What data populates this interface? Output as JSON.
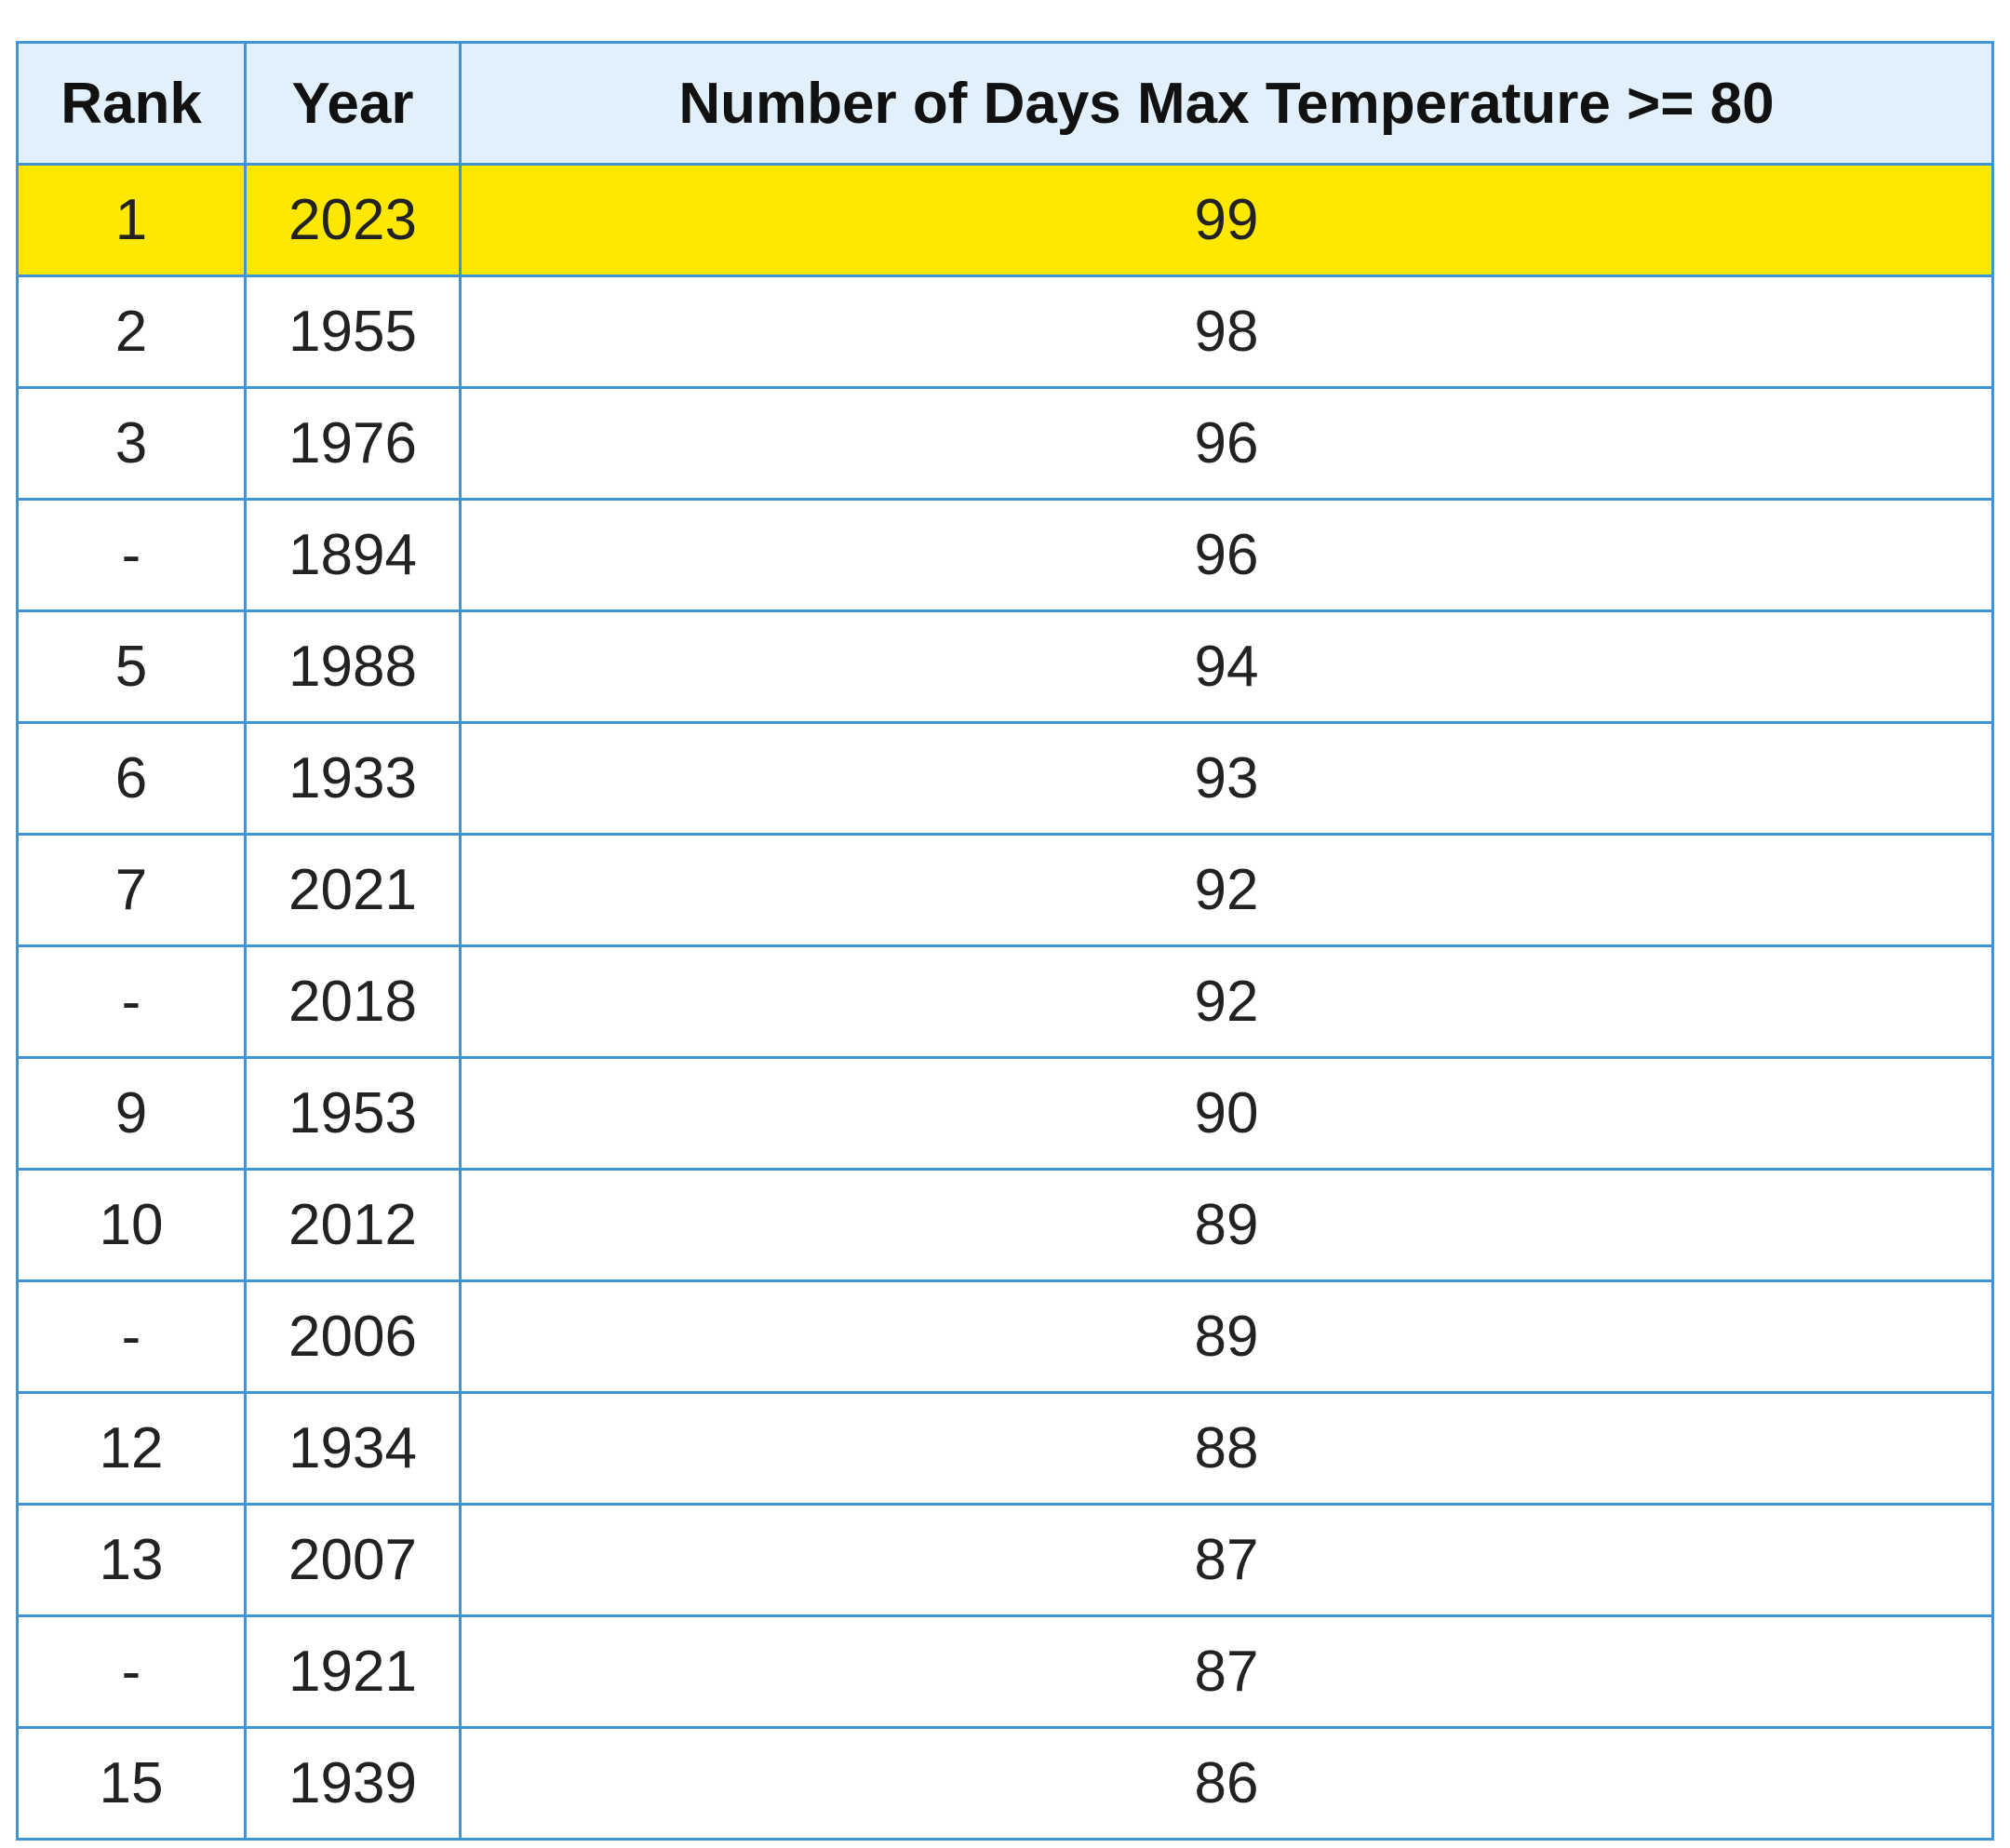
{
  "table": {
    "columns": [
      "Rank",
      "Year",
      "Number of Days Max Temperature >= 80"
    ],
    "rows": [
      [
        1,
        2023,
        99
      ],
      [
        2,
        1955,
        98
      ],
      [
        3,
        1976,
        96
      ],
      [
        "-",
        1894,
        96
      ],
      [
        5,
        1988,
        94
      ],
      [
        6,
        1933,
        93
      ],
      [
        7,
        2021,
        92
      ],
      [
        "-",
        2018,
        92
      ],
      [
        9,
        1953,
        90
      ],
      [
        10,
        2012,
        89
      ],
      [
        "-",
        2006,
        89
      ],
      [
        12,
        1934,
        88
      ],
      [
        13,
        2007,
        87
      ],
      [
        "-",
        1921,
        87
      ],
      [
        15,
        1939,
        86
      ]
    ]
  }
}
